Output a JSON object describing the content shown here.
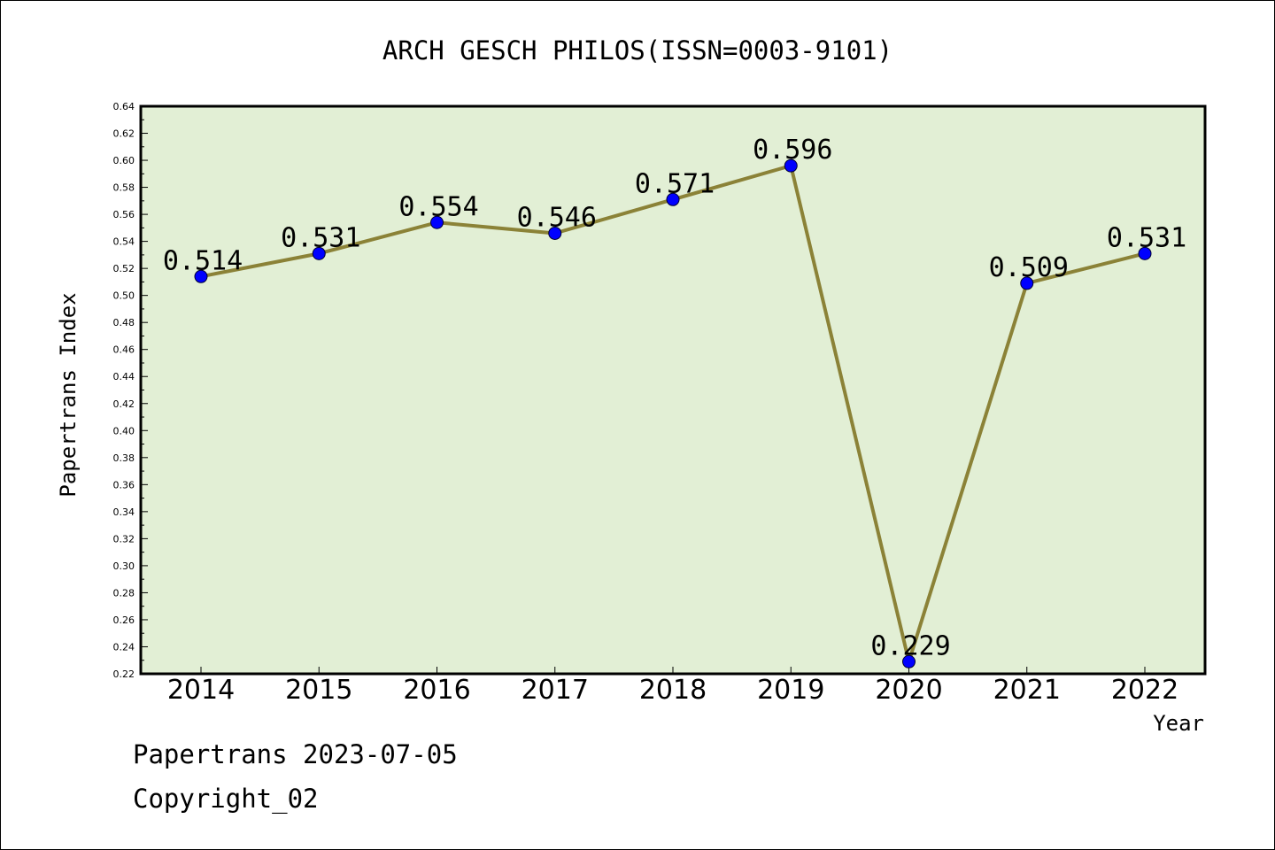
{
  "chart_data": {
    "type": "line",
    "title": "ARCH GESCH PHILOS(ISSN=0003-9101)",
    "xlabel": "Year",
    "ylabel": "Papertrans Index",
    "categories": [
      "2014",
      "2015",
      "2016",
      "2017",
      "2018",
      "2019",
      "2020",
      "2021",
      "2022"
    ],
    "values": [
      0.514,
      0.531,
      0.554,
      0.546,
      0.571,
      0.596,
      0.229,
      0.509,
      0.531
    ],
    "data_labels": [
      "0.514",
      "0.531",
      "0.554",
      "0.546",
      "0.571",
      "0.596",
      "0.229",
      "0.509",
      "0.531"
    ],
    "ylim": [
      0.22,
      0.64
    ],
    "yticks": [
      "0.22",
      "0.24",
      "0.26",
      "0.28",
      "0.30",
      "0.32",
      "0.34",
      "0.36",
      "0.38",
      "0.40",
      "0.42",
      "0.44",
      "0.46",
      "0.48",
      "0.50",
      "0.52",
      "0.54",
      "0.56",
      "0.58",
      "0.60",
      "0.62",
      "0.64"
    ],
    "grid": false,
    "legend": "none",
    "colors": {
      "plot_background": "#e2efd5",
      "line": "#8b8237",
      "marker": "#0000ff"
    }
  },
  "footer": {
    "line1": "Papertrans 2023-07-05",
    "line2": "Copyright_02"
  }
}
